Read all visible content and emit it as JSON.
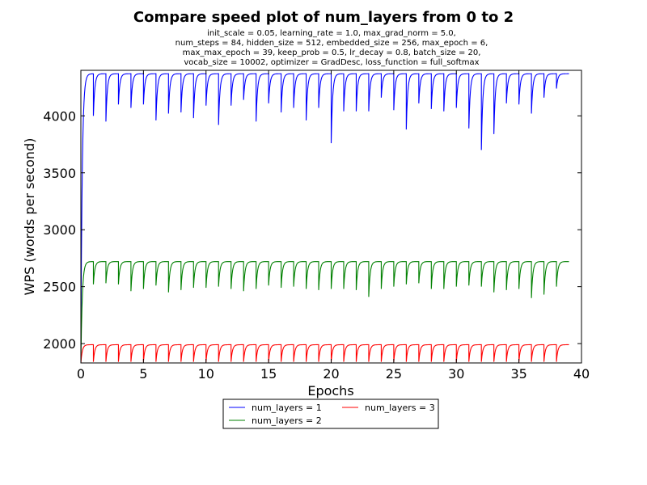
{
  "chart_data": {
    "type": "line",
    "title": "Compare speed plot of num_layers from 0 to 2",
    "subtitle_lines": [
      "init_scale = 0.05, learning_rate = 1.0, max_grad_norm = 5.0,",
      "num_steps = 84, hidden_size = 512, embedded_size = 256, max_epoch = 6,",
      "max_max_epoch = 39, keep_prob = 0.5, lr_decay = 0.8, batch_size = 20,",
      "vocab_size = 10002, optimizer = GradDesc, loss_function = full_softmax"
    ],
    "xlabel": "Epochs",
    "ylabel": "WPS (words per second)",
    "xlim": [
      0,
      40
    ],
    "ylim": [
      1830,
      4400
    ],
    "xticks": [
      "0",
      "5",
      "10",
      "15",
      "20",
      "25",
      "30",
      "35",
      "40"
    ],
    "yticks": [
      "2000",
      "2500",
      "3000",
      "3500",
      "4000"
    ],
    "xtick_values": [
      0,
      5,
      10,
      15,
      20,
      25,
      30,
      35,
      40
    ],
    "ytick_values": [
      2000,
      2500,
      3000,
      3500,
      4000
    ],
    "grid": false,
    "legend_position": "below-center",
    "epochs": 39,
    "series": [
      {
        "name": "num_layers = 1",
        "color": "#0000ff",
        "plateau": 4370,
        "first_start": 2000,
        "epoch_dips": [
          3800,
          4000,
          3950,
          4100,
          4070,
          4100,
          3960,
          4020,
          4030,
          3980,
          4090,
          3920,
          4090,
          4140,
          3950,
          4110,
          4030,
          4070,
          3960,
          4070,
          3760,
          4040,
          4040,
          4040,
          4160,
          4050,
          3880,
          4110,
          4060,
          4040,
          4070,
          3890,
          3700,
          3840,
          4110,
          4100,
          4020,
          4160,
          4240
        ]
      },
      {
        "name": "num_layers = 2",
        "color": "#008000",
        "plateau": 2720,
        "first_start": 1840,
        "epoch_dips": [
          2520,
          2520,
          2530,
          2520,
          2460,
          2480,
          2510,
          2450,
          2470,
          2490,
          2490,
          2500,
          2480,
          2460,
          2480,
          2510,
          2490,
          2500,
          2480,
          2470,
          2480,
          2480,
          2470,
          2410,
          2480,
          2500,
          2520,
          2530,
          2480,
          2480,
          2500,
          2510,
          2500,
          2450,
          2470,
          2480,
          2400,
          2430,
          2500
        ]
      },
      {
        "name": "num_layers = 3",
        "color": "#ff0000",
        "plateau": 1990,
        "first_start": 1830,
        "epoch_dips": [
          1840,
          1840,
          1840,
          1840,
          1840,
          1840,
          1840,
          1840,
          1840,
          1840,
          1840,
          1840,
          1840,
          1840,
          1840,
          1840,
          1840,
          1840,
          1840,
          1840,
          1840,
          1840,
          1840,
          1840,
          1840,
          1840,
          1840,
          1840,
          1840,
          1840,
          1840,
          1840,
          1840,
          1840,
          1840,
          1840,
          1840,
          1840,
          1840
        ]
      }
    ]
  }
}
